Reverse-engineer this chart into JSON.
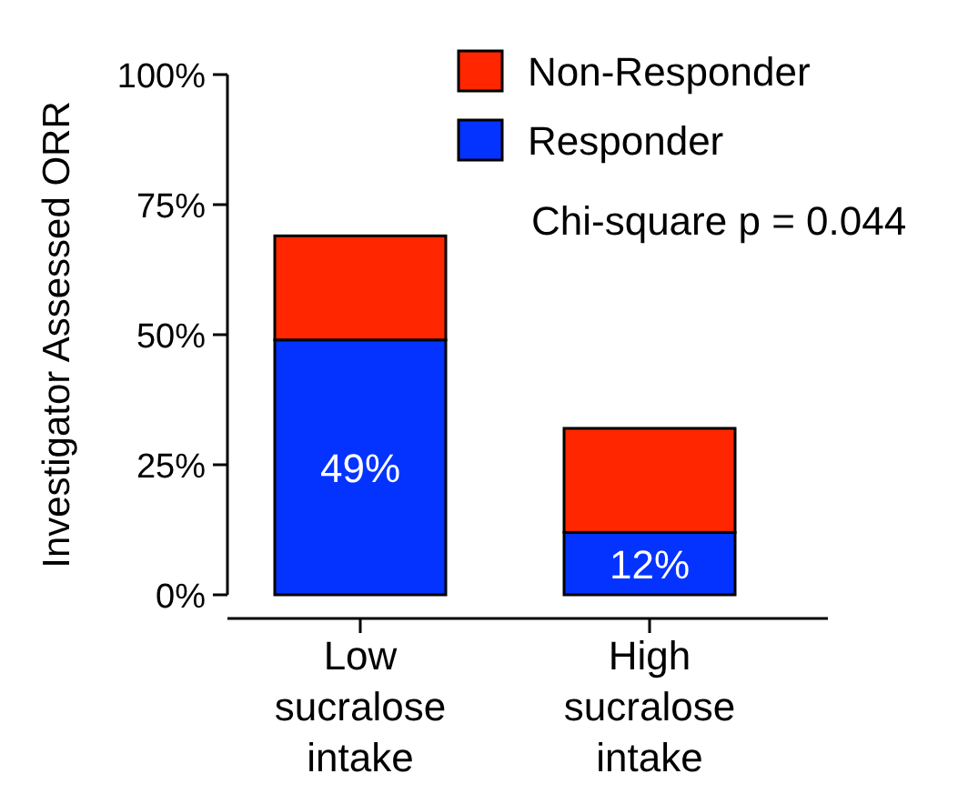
{
  "chart_data": {
    "type": "bar",
    "stacked": true,
    "ylabel": "Investigator Assessed ORR",
    "categories": [
      "Low sucralose intake",
      "High sucralose intake"
    ],
    "series": [
      {
        "name": "Responder",
        "color": "#0433ff",
        "values": [
          49,
          12
        ],
        "value_labels": [
          "49%",
          "12%"
        ]
      },
      {
        "name": "Non-Responder",
        "color": "#ff2600",
        "values": [
          20,
          20
        ]
      }
    ],
    "ylim": [
      0,
      100
    ],
    "yticks": [
      {
        "value": 0,
        "label": "0%"
      },
      {
        "value": 25,
        "label": "25%"
      },
      {
        "value": 50,
        "label": "50%"
      },
      {
        "value": 75,
        "label": "75%"
      },
      {
        "value": 100,
        "label": "100%"
      }
    ],
    "grid": false,
    "legend": "top right",
    "annotations": [
      "Chi-square p = 0.044"
    ]
  }
}
